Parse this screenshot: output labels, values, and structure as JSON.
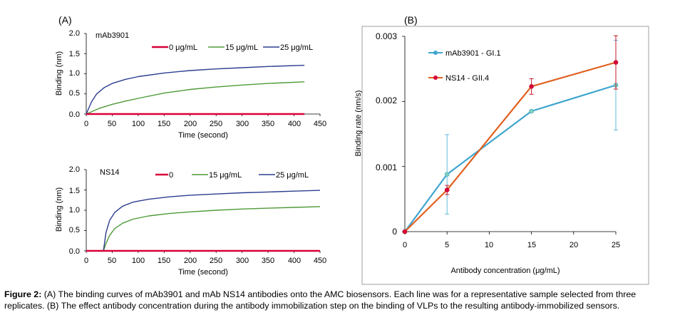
{
  "figure": {
    "panel_a_label": "(A)",
    "panel_b_label": "(B)",
    "caption_label": "Figure 2:",
    "caption_text": " (A) The binding curves of mAb3901 and mAb NS14 antibodies onto the AMC biosensors. Each line was for a representative sample selected from three replicates. (B) The effect antibody concentration during the antibody immobilization step on the binding of VLPs to the resulting antibody-immobilized sensors."
  },
  "colors": {
    "red": "#d9003a",
    "green": "#4e9a38",
    "navy": "#2c3e8f",
    "cyan": "#3fa6cf",
    "orange": "#e0601f",
    "errcyan": "#65b9d8",
    "errred": "#c01a2a"
  },
  "chart_data": [
    {
      "type": "line",
      "title": "mAb3901",
      "xlabel": "Time (second)",
      "ylabel": "Binding (nm)",
      "xlim": [
        0,
        450
      ],
      "ylim": [
        0,
        2.0
      ],
      "xticks": [
        "0",
        "50",
        "100",
        "150",
        "200",
        "250",
        "300",
        "350",
        "400",
        "450"
      ],
      "yticks": [
        "0.0",
        "0.5",
        "1.0",
        "1.5",
        "2.0"
      ],
      "series": [
        {
          "name": "0 μg/mL",
          "color": "#d9003a",
          "x": [
            0,
            420
          ],
          "y": [
            0,
            0
          ]
        },
        {
          "name": "15 μg/mL",
          "color": "#4e9a38",
          "x": [
            0,
            25,
            50,
            75,
            100,
            150,
            200,
            250,
            300,
            350,
            420
          ],
          "y": [
            0,
            0.14,
            0.24,
            0.32,
            0.39,
            0.52,
            0.61,
            0.67,
            0.72,
            0.76,
            0.8
          ]
        },
        {
          "name": "25 μg/mL",
          "color": "#2c3e8f",
          "x": [
            0,
            10,
            20,
            35,
            50,
            75,
            100,
            150,
            200,
            250,
            300,
            350,
            420
          ],
          "y": [
            0,
            0.3,
            0.5,
            0.66,
            0.76,
            0.86,
            0.93,
            1.02,
            1.08,
            1.12,
            1.15,
            1.18,
            1.21
          ]
        }
      ]
    },
    {
      "type": "line",
      "title": "NS14",
      "xlabel": "Time (second)",
      "ylabel": "Binding (nm)",
      "xlim": [
        0,
        450
      ],
      "ylim": [
        0,
        2.0
      ],
      "xticks": [
        "0",
        "50",
        "100",
        "150",
        "200",
        "250",
        "300",
        "350",
        "400",
        "450"
      ],
      "yticks": [
        "0.0",
        "0.5",
        "1.0",
        "1.5",
        "2.0"
      ],
      "series": [
        {
          "name": "0",
          "color": "#d9003a",
          "x": [
            0,
            450
          ],
          "y": [
            0,
            0
          ]
        },
        {
          "name": "15 μg/mL",
          "color": "#4e9a38",
          "x": [
            0,
            33,
            38,
            45,
            55,
            70,
            90,
            120,
            160,
            200,
            250,
            300,
            350,
            400,
            450
          ],
          "y": [
            0,
            0,
            0.18,
            0.38,
            0.55,
            0.68,
            0.78,
            0.86,
            0.92,
            0.96,
            1.0,
            1.03,
            1.05,
            1.07,
            1.09
          ]
        },
        {
          "name": "25 μg/mL",
          "color": "#2c3e8f",
          "x": [
            0,
            33,
            38,
            45,
            55,
            70,
            90,
            120,
            160,
            200,
            250,
            300,
            350,
            400,
            450
          ],
          "y": [
            0,
            0,
            0.45,
            0.75,
            0.95,
            1.1,
            1.2,
            1.27,
            1.33,
            1.37,
            1.4,
            1.43,
            1.45,
            1.47,
            1.49
          ]
        }
      ]
    },
    {
      "type": "line",
      "xlabel": "Antibody concentration (μg/mL)",
      "ylabel": "Binding rate (nm/s)",
      "categories": [
        "0",
        "5",
        "10",
        "15",
        "20",
        "25"
      ],
      "ylim": [
        0,
        0.003
      ],
      "yticks": [
        "0",
        "0.001",
        "0.002",
        "0.003"
      ],
      "series": [
        {
          "name": "mAb3901 - GI.1",
          "color": "#3fa6cf",
          "err_color": "#65b9d8",
          "x": [
            0,
            5,
            15,
            25
          ],
          "y": [
            0,
            0.00088,
            0.00185,
            0.00225
          ],
          "err": [
            0,
            0.00061,
            0,
            0.00069
          ]
        },
        {
          "name": "NS14 - GII.4",
          "color": "#e0601f",
          "err_color": "#c01a2a",
          "x": [
            0,
            5,
            15,
            25
          ],
          "y": [
            0,
            0.00064,
            0.00223,
            0.0026
          ],
          "err": [
            0,
            7e-05,
            0.00012,
            0.00041
          ]
        }
      ]
    }
  ]
}
